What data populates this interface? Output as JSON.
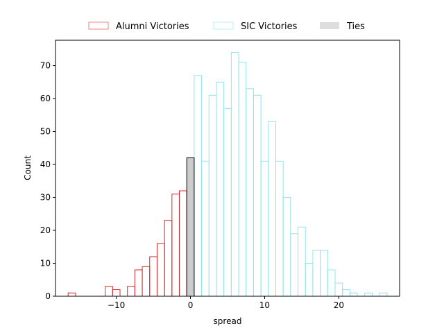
{
  "chart_data": {
    "type": "bar",
    "subtype": "histogram",
    "xlabel": "spread",
    "ylabel": "Count",
    "xlim": [
      -18.2,
      28.2
    ],
    "ylim": [
      0,
      77.7
    ],
    "xticks": [
      -10,
      0,
      10,
      20
    ],
    "xtick_labels": [
      "−10",
      "0",
      "10",
      "20"
    ],
    "yticks": [
      0,
      10,
      20,
      30,
      40,
      50,
      60,
      70
    ],
    "bin_width": 1,
    "legend_position": "top-center",
    "series": [
      {
        "name": "Alumni Victories",
        "color": "#d62728",
        "legend_color": "#f08080",
        "fill": "none",
        "bins": [
          {
            "x": -16,
            "count": 1
          },
          {
            "x": -11,
            "count": 3
          },
          {
            "x": -10,
            "count": 2
          },
          {
            "x": -8,
            "count": 3
          },
          {
            "x": -7,
            "count": 8
          },
          {
            "x": -6,
            "count": 9
          },
          {
            "x": -5,
            "count": 12
          },
          {
            "x": -4,
            "count": 16
          },
          {
            "x": -3,
            "count": 23
          },
          {
            "x": -2,
            "count": 31
          },
          {
            "x": -1,
            "count": 32
          }
        ]
      },
      {
        "name": "SIC Victories",
        "color": "#8ee4ee",
        "legend_color": "#b9eef4",
        "fill": "none",
        "bins": [
          {
            "x": 1,
            "count": 67
          },
          {
            "x": 2,
            "count": 41
          },
          {
            "x": 3,
            "count": 61
          },
          {
            "x": 4,
            "count": 65
          },
          {
            "x": 5,
            "count": 57
          },
          {
            "x": 6,
            "count": 74
          },
          {
            "x": 7,
            "count": 71
          },
          {
            "x": 8,
            "count": 63
          },
          {
            "x": 9,
            "count": 61
          },
          {
            "x": 10,
            "count": 41
          },
          {
            "x": 11,
            "count": 53
          },
          {
            "x": 12,
            "count": 41
          },
          {
            "x": 13,
            "count": 30
          },
          {
            "x": 14,
            "count": 19
          },
          {
            "x": 15,
            "count": 21
          },
          {
            "x": 16,
            "count": 10
          },
          {
            "x": 17,
            "count": 14
          },
          {
            "x": 18,
            "count": 14
          },
          {
            "x": 19,
            "count": 8
          },
          {
            "x": 20,
            "count": 4
          },
          {
            "x": 21,
            "count": 2
          },
          {
            "x": 22,
            "count": 1
          },
          {
            "x": 24,
            "count": 1
          },
          {
            "x": 26,
            "count": 1
          }
        ]
      },
      {
        "name": "Ties",
        "color": "#000000",
        "legend_color": "#dddddd",
        "fill": "#cccccc",
        "bins": [
          {
            "x": 0,
            "count": 42
          }
        ]
      }
    ]
  }
}
